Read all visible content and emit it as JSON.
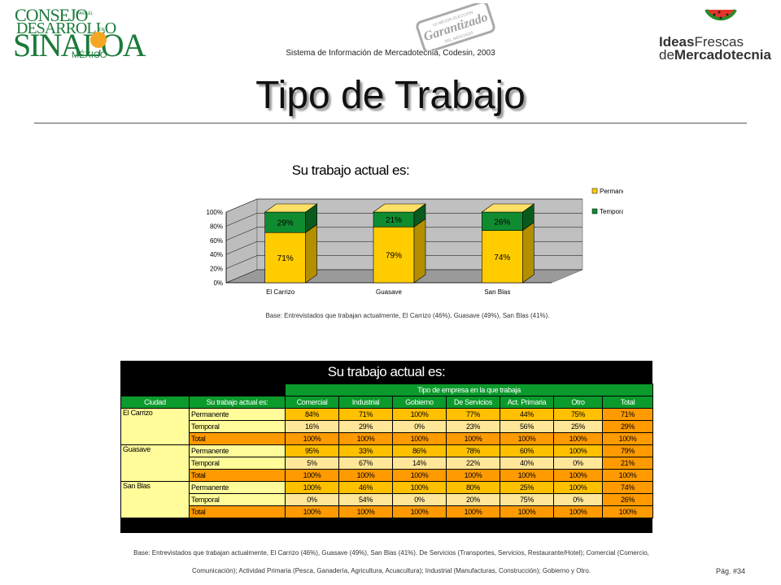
{
  "header": {
    "logo_left": {
      "line1": "CONSEJO",
      "line2": "DESARROLLO",
      "line3": "SINALOA",
      "line4": "MÉXICO",
      "small1": "PARA EL",
      "small2": "DE"
    },
    "stamp": {
      "text": "Garantizado",
      "small_top": "LA MEJOR ELECCIÓN",
      "small_bottom": "DEL MERCADO"
    },
    "subtitle": "Sistema de Información de Mercadotecnia, Codesin, 2003",
    "logo_right": {
      "ideas": "Ideas",
      "frescas": "Frescas",
      "de": "de",
      "mercadotecnia": "Mercadotecnia",
      "icon": "watermelon-icon"
    }
  },
  "page_title": "Tipo de Trabajo",
  "chart_data": {
    "type": "bar",
    "stacked": true,
    "title": "Su trabajo actual es:",
    "categories": [
      "El Carrizo",
      "Guasave",
      "San Blas"
    ],
    "series": [
      {
        "name": "Permanente",
        "values": [
          71,
          79,
          74
        ],
        "labels": [
          "71%",
          "79%",
          "74%"
        ],
        "color": "#ffcc00"
      },
      {
        "name": "Temporal",
        "values": [
          29,
          21,
          26
        ],
        "labels": [
          "29%",
          "21%",
          "26%"
        ],
        "color": "#108c30"
      }
    ],
    "ylim": [
      0,
      100
    ],
    "yticks": [
      "0%",
      "20%",
      "40%",
      "60%",
      "80%",
      "100%"
    ],
    "legend": "right",
    "grid": true
  },
  "chart_note": "Base: Entrevistados que trabajan actualmente, El Carrizo (46%), Guasave (49%), San Blas (41%).",
  "table": {
    "title": "Su trabajo actual es:",
    "group_header": "Tipo de empresa en la que trabaja",
    "headers": [
      "Ciudad",
      "Su trabajo actual es:",
      "Comercial",
      "Industrial",
      "Gobierno",
      "De Servicios",
      "Act. Primaria",
      "Otro",
      "Total"
    ],
    "rows": [
      {
        "city": "El Carrizo",
        "label": "Permanente",
        "values": [
          "84%",
          "71%",
          "100%",
          "77%",
          "44%",
          "75%",
          "71%"
        ]
      },
      {
        "city": "",
        "label": "Temporal",
        "values": [
          "16%",
          "29%",
          "0%",
          "23%",
          "56%",
          "25%",
          "29%"
        ]
      },
      {
        "city": "",
        "label": "Total",
        "values": [
          "100%",
          "100%",
          "100%",
          "100%",
          "100%",
          "100%",
          "100%"
        ]
      },
      {
        "city": "Guasave",
        "label": "Permanente",
        "values": [
          "95%",
          "33%",
          "86%",
          "78%",
          "60%",
          "100%",
          "79%"
        ]
      },
      {
        "city": "",
        "label": "Temporal",
        "values": [
          "5%",
          "67%",
          "14%",
          "22%",
          "40%",
          "0%",
          "21%"
        ]
      },
      {
        "city": "",
        "label": "Total",
        "values": [
          "100%",
          "100%",
          "100%",
          "100%",
          "100%",
          "100%",
          "100%"
        ]
      },
      {
        "city": "San Blas",
        "label": "Permanente",
        "values": [
          "100%",
          "46%",
          "100%",
          "80%",
          "25%",
          "100%",
          "74%"
        ]
      },
      {
        "city": "",
        "label": "Temporal",
        "values": [
          "0%",
          "54%",
          "0%",
          "20%",
          "75%",
          "0%",
          "26%"
        ]
      },
      {
        "city": "",
        "label": "Total",
        "values": [
          "100%",
          "100%",
          "100%",
          "100%",
          "100%",
          "100%",
          "100%"
        ]
      }
    ]
  },
  "footnote": {
    "line1": "Base: Entrevistados que trabajan actualmente, El Carrizo (46%), Guasave (49%), San Blas (41%). De Servicios (Transportes, Servicios, Restaurante/Hotel); Comercial (Comercio,",
    "line2": "Comunicación); Actividad Primaria (Pesca, Ganadería, Agricultura, Acuacultura); Industrial (Manufacturas, Construcción); Gobierno y Otro."
  },
  "page_number": "Pág. #34"
}
